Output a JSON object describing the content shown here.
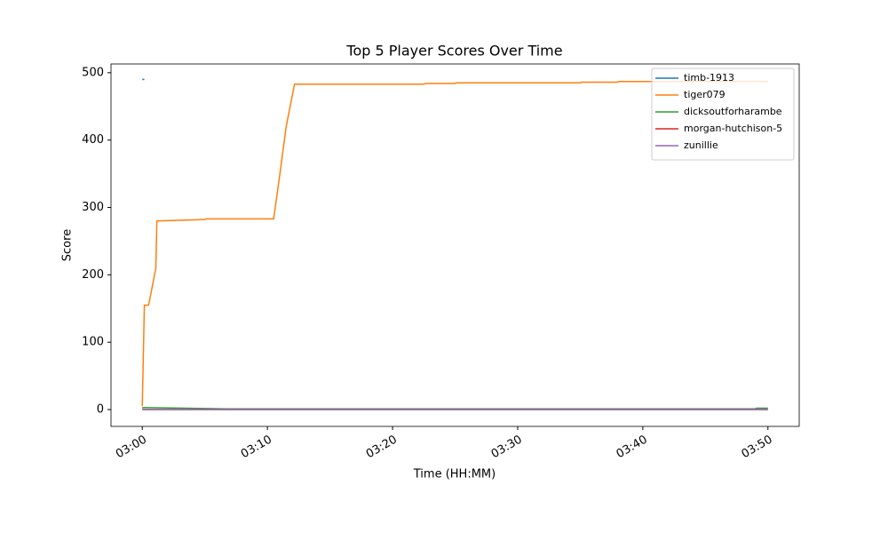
{
  "chart_data": {
    "type": "line",
    "title": "Top 5 Player Scores Over Time",
    "x_label": "Time (HH:MM)",
    "y_label": "Score",
    "xlim": [
      "02:57:30",
      "03:52:30"
    ],
    "ylim": [
      -25,
      513
    ],
    "xticks": [
      "03:00",
      "03:10",
      "03:20",
      "03:30",
      "03:40",
      "03:50"
    ],
    "yticks": [
      0,
      100,
      200,
      300,
      400,
      500
    ],
    "legend": "upper right",
    "series": [
      {
        "name": "timb-1913",
        "color": "#1f77b4",
        "x": [
          "03:00:00",
          "03:00:10"
        ],
        "values": [
          490,
          490
        ]
      },
      {
        "name": "tiger079",
        "color": "#ff7f0e",
        "x": [
          "03:00:00",
          "03:00:10",
          "03:00:30",
          "03:00:40",
          "03:01:05",
          "03:01:10",
          "03:05:00",
          "03:05:05",
          "03:10:30",
          "03:11:00",
          "03:11:30",
          "03:12:10",
          "03:22:30",
          "03:22:35",
          "03:25:00",
          "03:25:05",
          "03:35:00",
          "03:35:05",
          "03:38:00",
          "03:38:05",
          "03:50:00"
        ],
        "values": [
          5,
          155,
          155,
          170,
          210,
          280,
          282,
          283,
          283,
          350,
          420,
          483,
          483,
          484,
          484,
          485,
          485,
          486,
          486,
          487,
          487
        ]
      },
      {
        "name": "dicksoutforharambe",
        "color": "#2ca02c",
        "x": [
          "03:00:00",
          "03:07:00",
          "03:49:00",
          "03:49:05",
          "03:50:00"
        ],
        "values": [
          3,
          1,
          1,
          2,
          2
        ]
      },
      {
        "name": "morgan-hutchison-5",
        "color": "#d62728",
        "x": [
          "03:00:00",
          "03:50:00"
        ],
        "values": [
          0,
          0
        ]
      },
      {
        "name": "zunillie",
        "color": "#9467bd",
        "x": [
          "03:00:00",
          "03:00:10",
          "03:50:00"
        ],
        "values": [
          1,
          0,
          0
        ]
      }
    ]
  }
}
